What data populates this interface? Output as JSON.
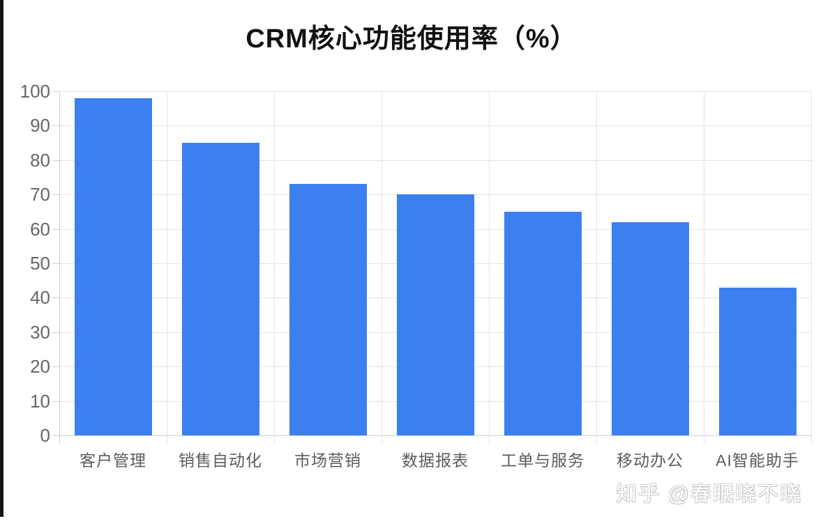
{
  "page": {
    "background": "#ffffff",
    "left_border_color": "#151515"
  },
  "chart_data": {
    "type": "bar",
    "title": "CRM核心功能使用率（%）",
    "categories": [
      "客户管理",
      "销售自动化",
      "市场营销",
      "数据报表",
      "工单与服务",
      "移动办公",
      "AI智能助手"
    ],
    "values": [
      98,
      85,
      73,
      70,
      65,
      62,
      43
    ],
    "xlabel": "",
    "ylabel": "",
    "ylim": [
      0,
      100
    ],
    "ytick_step": 10,
    "ytick_labels": [
      "0",
      "10",
      "20",
      "30",
      "40",
      "50",
      "60",
      "70",
      "80",
      "90",
      "100"
    ],
    "grid": true,
    "legend": false,
    "bar_color": "#3c80f0",
    "gridline_color": "#e4e4e4",
    "axis_color": "#cccccc",
    "tick_label_color": "#666666",
    "category_label_color": "#5c5c5c",
    "title_color": "#111111"
  },
  "watermark": {
    "text": "知乎 @春眠晓不晓"
  }
}
